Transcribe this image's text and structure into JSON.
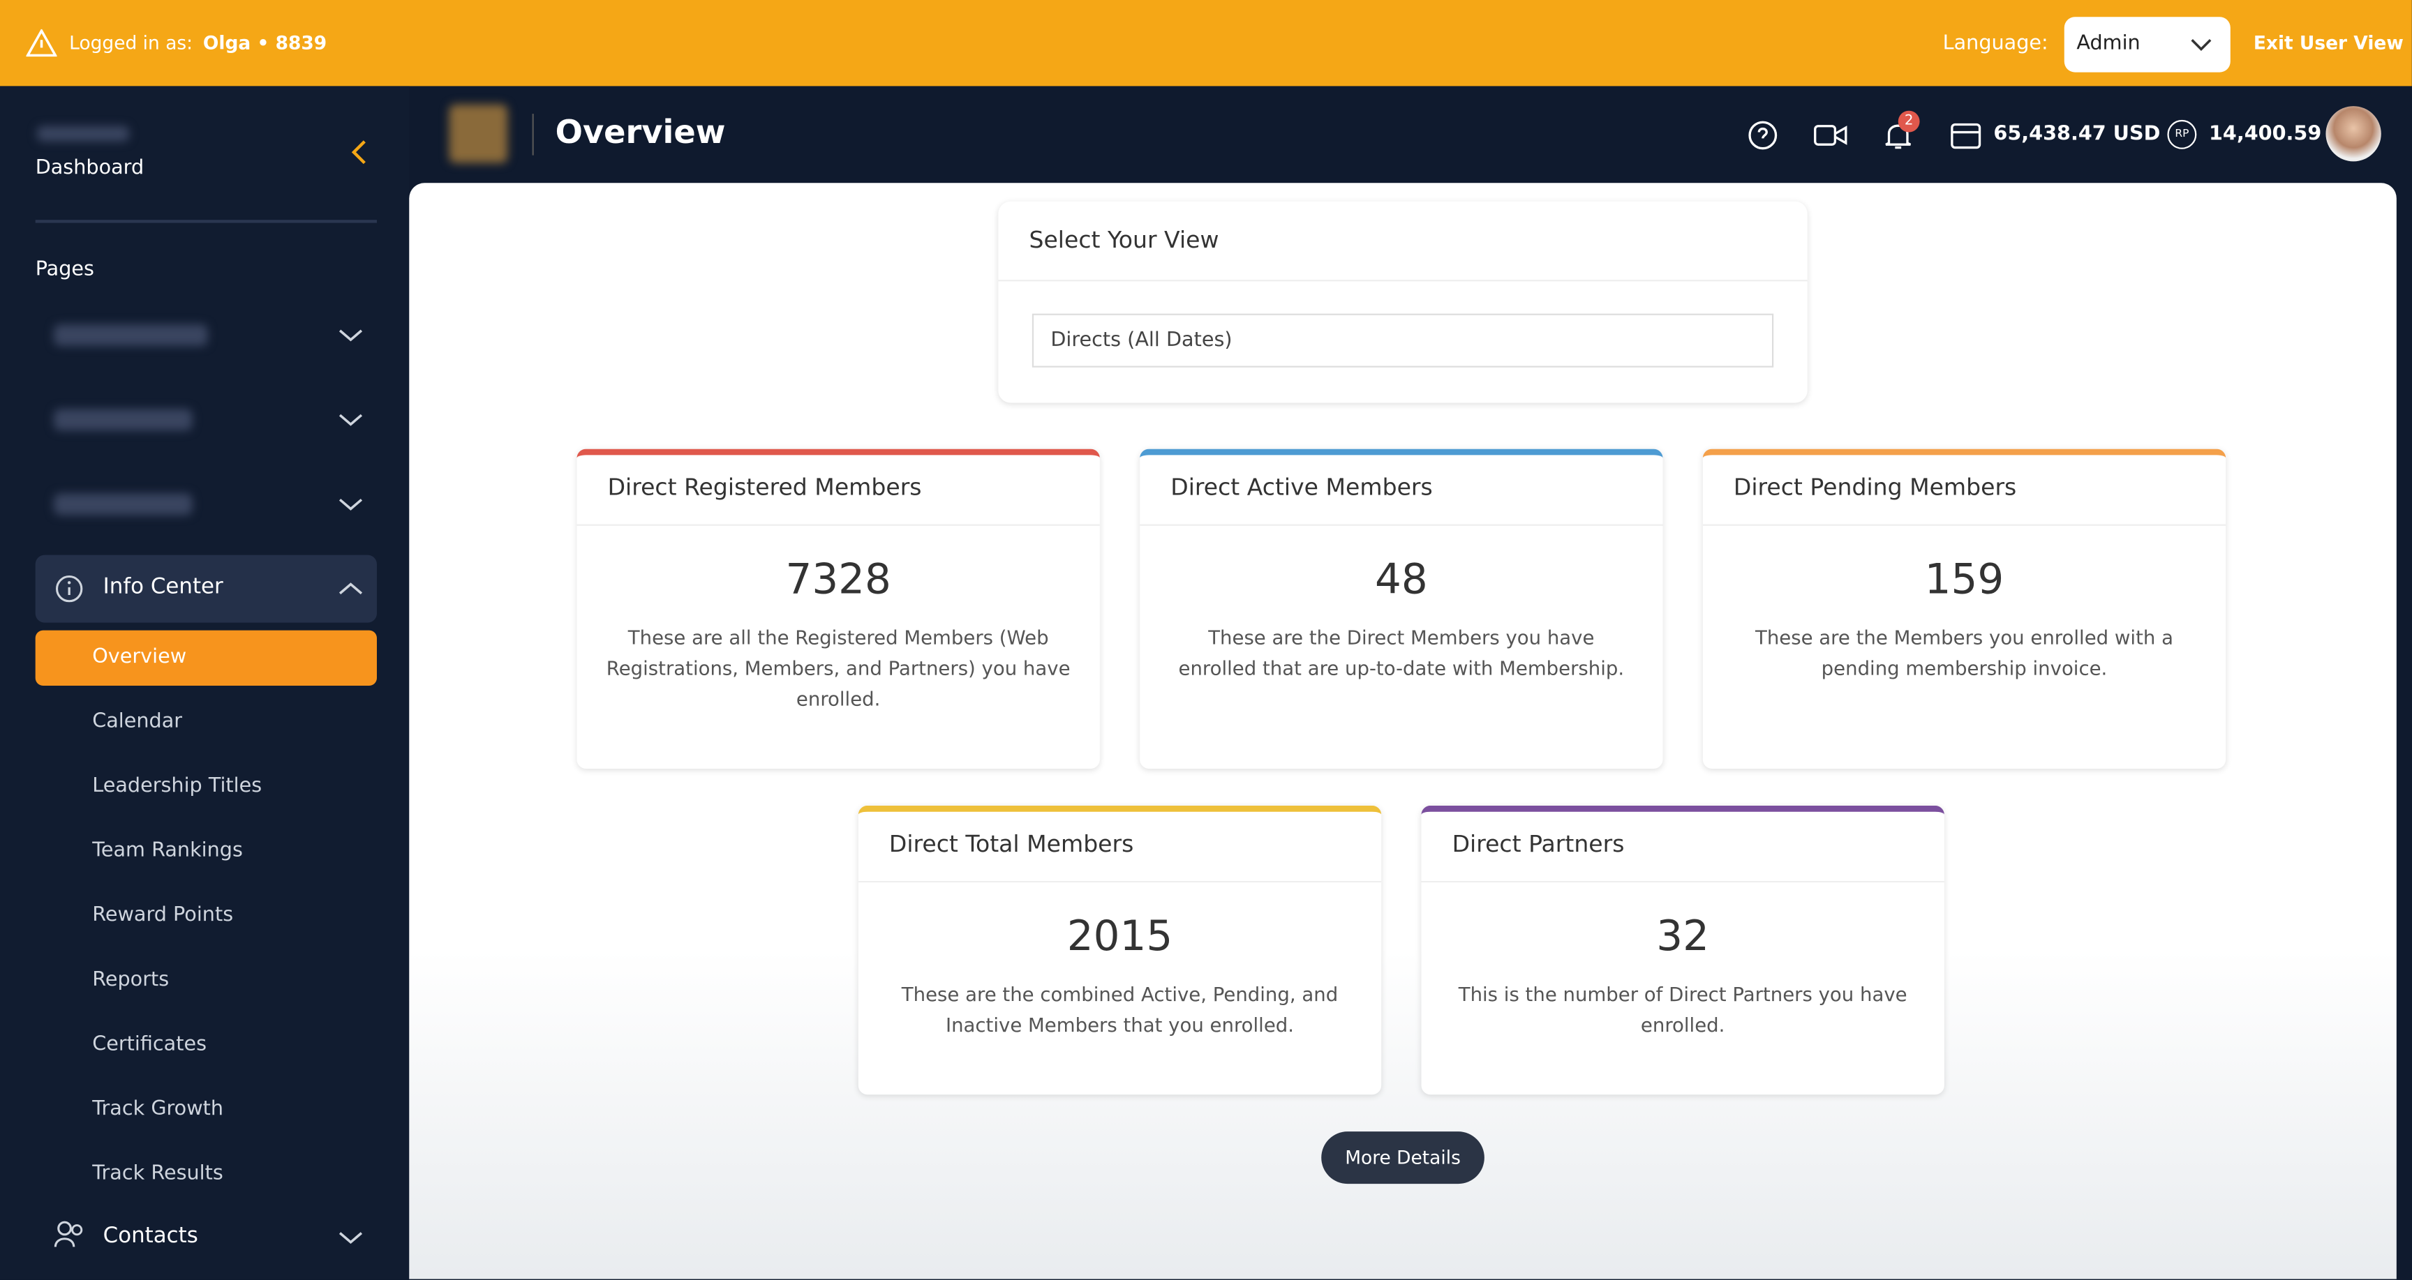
{
  "topbar": {
    "logged_in_label": "Logged in as:",
    "user": "Olga • 8839",
    "language_label": "Language:",
    "language_value": "Admin",
    "exit": "Exit User View"
  },
  "sidebar": {
    "dashboard": "Dashboard",
    "section": "Pages",
    "group": "Info Center",
    "active": 0,
    "items": [
      "Overview",
      "Calendar",
      "Leadership Titles",
      "Team Rankings",
      "Reward Points",
      "Reports",
      "Certificates",
      "Track Growth",
      "Track Results"
    ],
    "contacts": "Contacts"
  },
  "header": {
    "title": "Overview",
    "notifications": 2,
    "balance": "65,438.47 USD",
    "points_badge": "RP",
    "points": "14,400.59"
  },
  "view_selector": {
    "title": "Select Your View",
    "value": "Directs (All Dates)"
  },
  "cards": [
    {
      "title": "Direct Registered Members",
      "value": 7328,
      "description": "These are all the Registered Members (Web Registrations, Members, and Partners) you have enrolled.",
      "color": "#e0584c"
    },
    {
      "title": "Direct Active Members",
      "value": 48,
      "description": "These are the Direct Members you have enrolled that are up-to-date with Membership.",
      "color": "#4d9bd3"
    },
    {
      "title": "Direct Pending Members",
      "value": 159,
      "description": "These are the Members you enrolled with a pending membership invoice.",
      "color": "#f4a04a"
    },
    {
      "title": "Direct Total Members",
      "value": 2015,
      "description": "These are the combined Active, Pending, and Inactive Members that you enrolled.",
      "color": "#eec03a"
    },
    {
      "title": "Direct Partners",
      "value": 32,
      "description": "This is the number of Direct Partners you have enrolled.",
      "color": "#7b4f9e"
    }
  ],
  "button": "More Details"
}
